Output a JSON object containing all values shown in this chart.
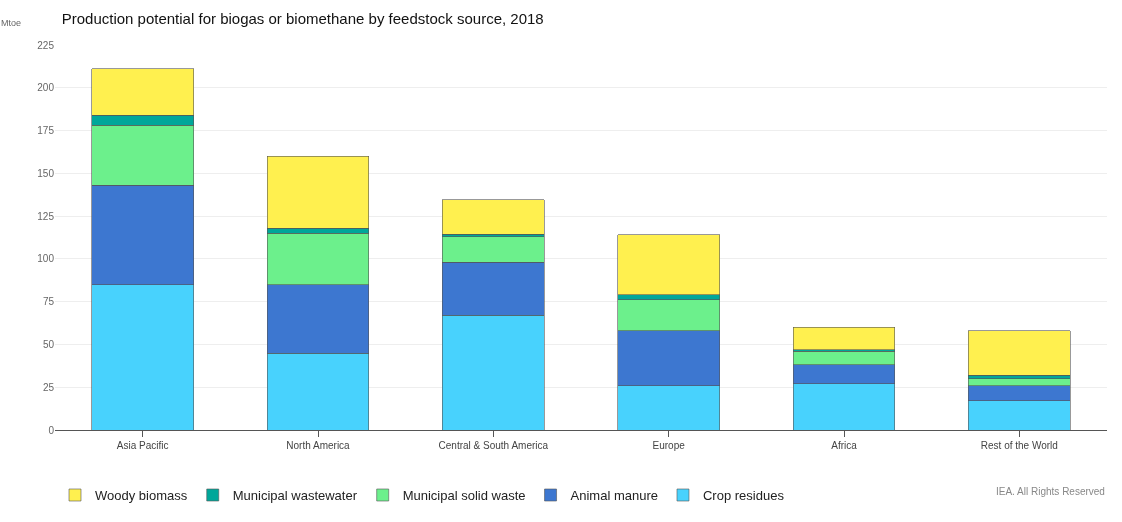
{
  "chart_data": {
    "type": "bar",
    "stacked": true,
    "title": "Production potential for biogas or biomethane by feedstock source, 2018",
    "ylabel": "Mtoe",
    "categories": [
      "Asia Pacific",
      "North America",
      "Central & South America",
      "Europe",
      "Africa",
      "Rest of the World"
    ],
    "series": [
      {
        "name": "Crop residues",
        "color": "#48d2fd",
        "values": [
          85,
          45,
          67,
          26,
          27,
          17
        ]
      },
      {
        "name": "Animal manure",
        "color": "#3d77d0",
        "values": [
          58,
          40,
          31,
          32,
          11,
          9
        ]
      },
      {
        "name": "Municipal solid waste",
        "color": "#6cf08c",
        "values": [
          35,
          30,
          15,
          18,
          8,
          4
        ]
      },
      {
        "name": "Municipal wastewater",
        "color": "#00a79a",
        "values": [
          6,
          3,
          1.5,
          3,
          1,
          2
        ]
      },
      {
        "name": "Woody biomass",
        "color": "#fff04f",
        "values": [
          27,
          42,
          20,
          35,
          13,
          26
        ]
      }
    ],
    "ylim": [
      0,
      225
    ],
    "yticks": [
      0,
      25,
      50,
      75,
      100,
      125,
      150,
      175,
      200,
      225
    ],
    "grid": "y",
    "legend": "bottom",
    "annotations": [
      "IEA. All Rights Reserved"
    ]
  }
}
